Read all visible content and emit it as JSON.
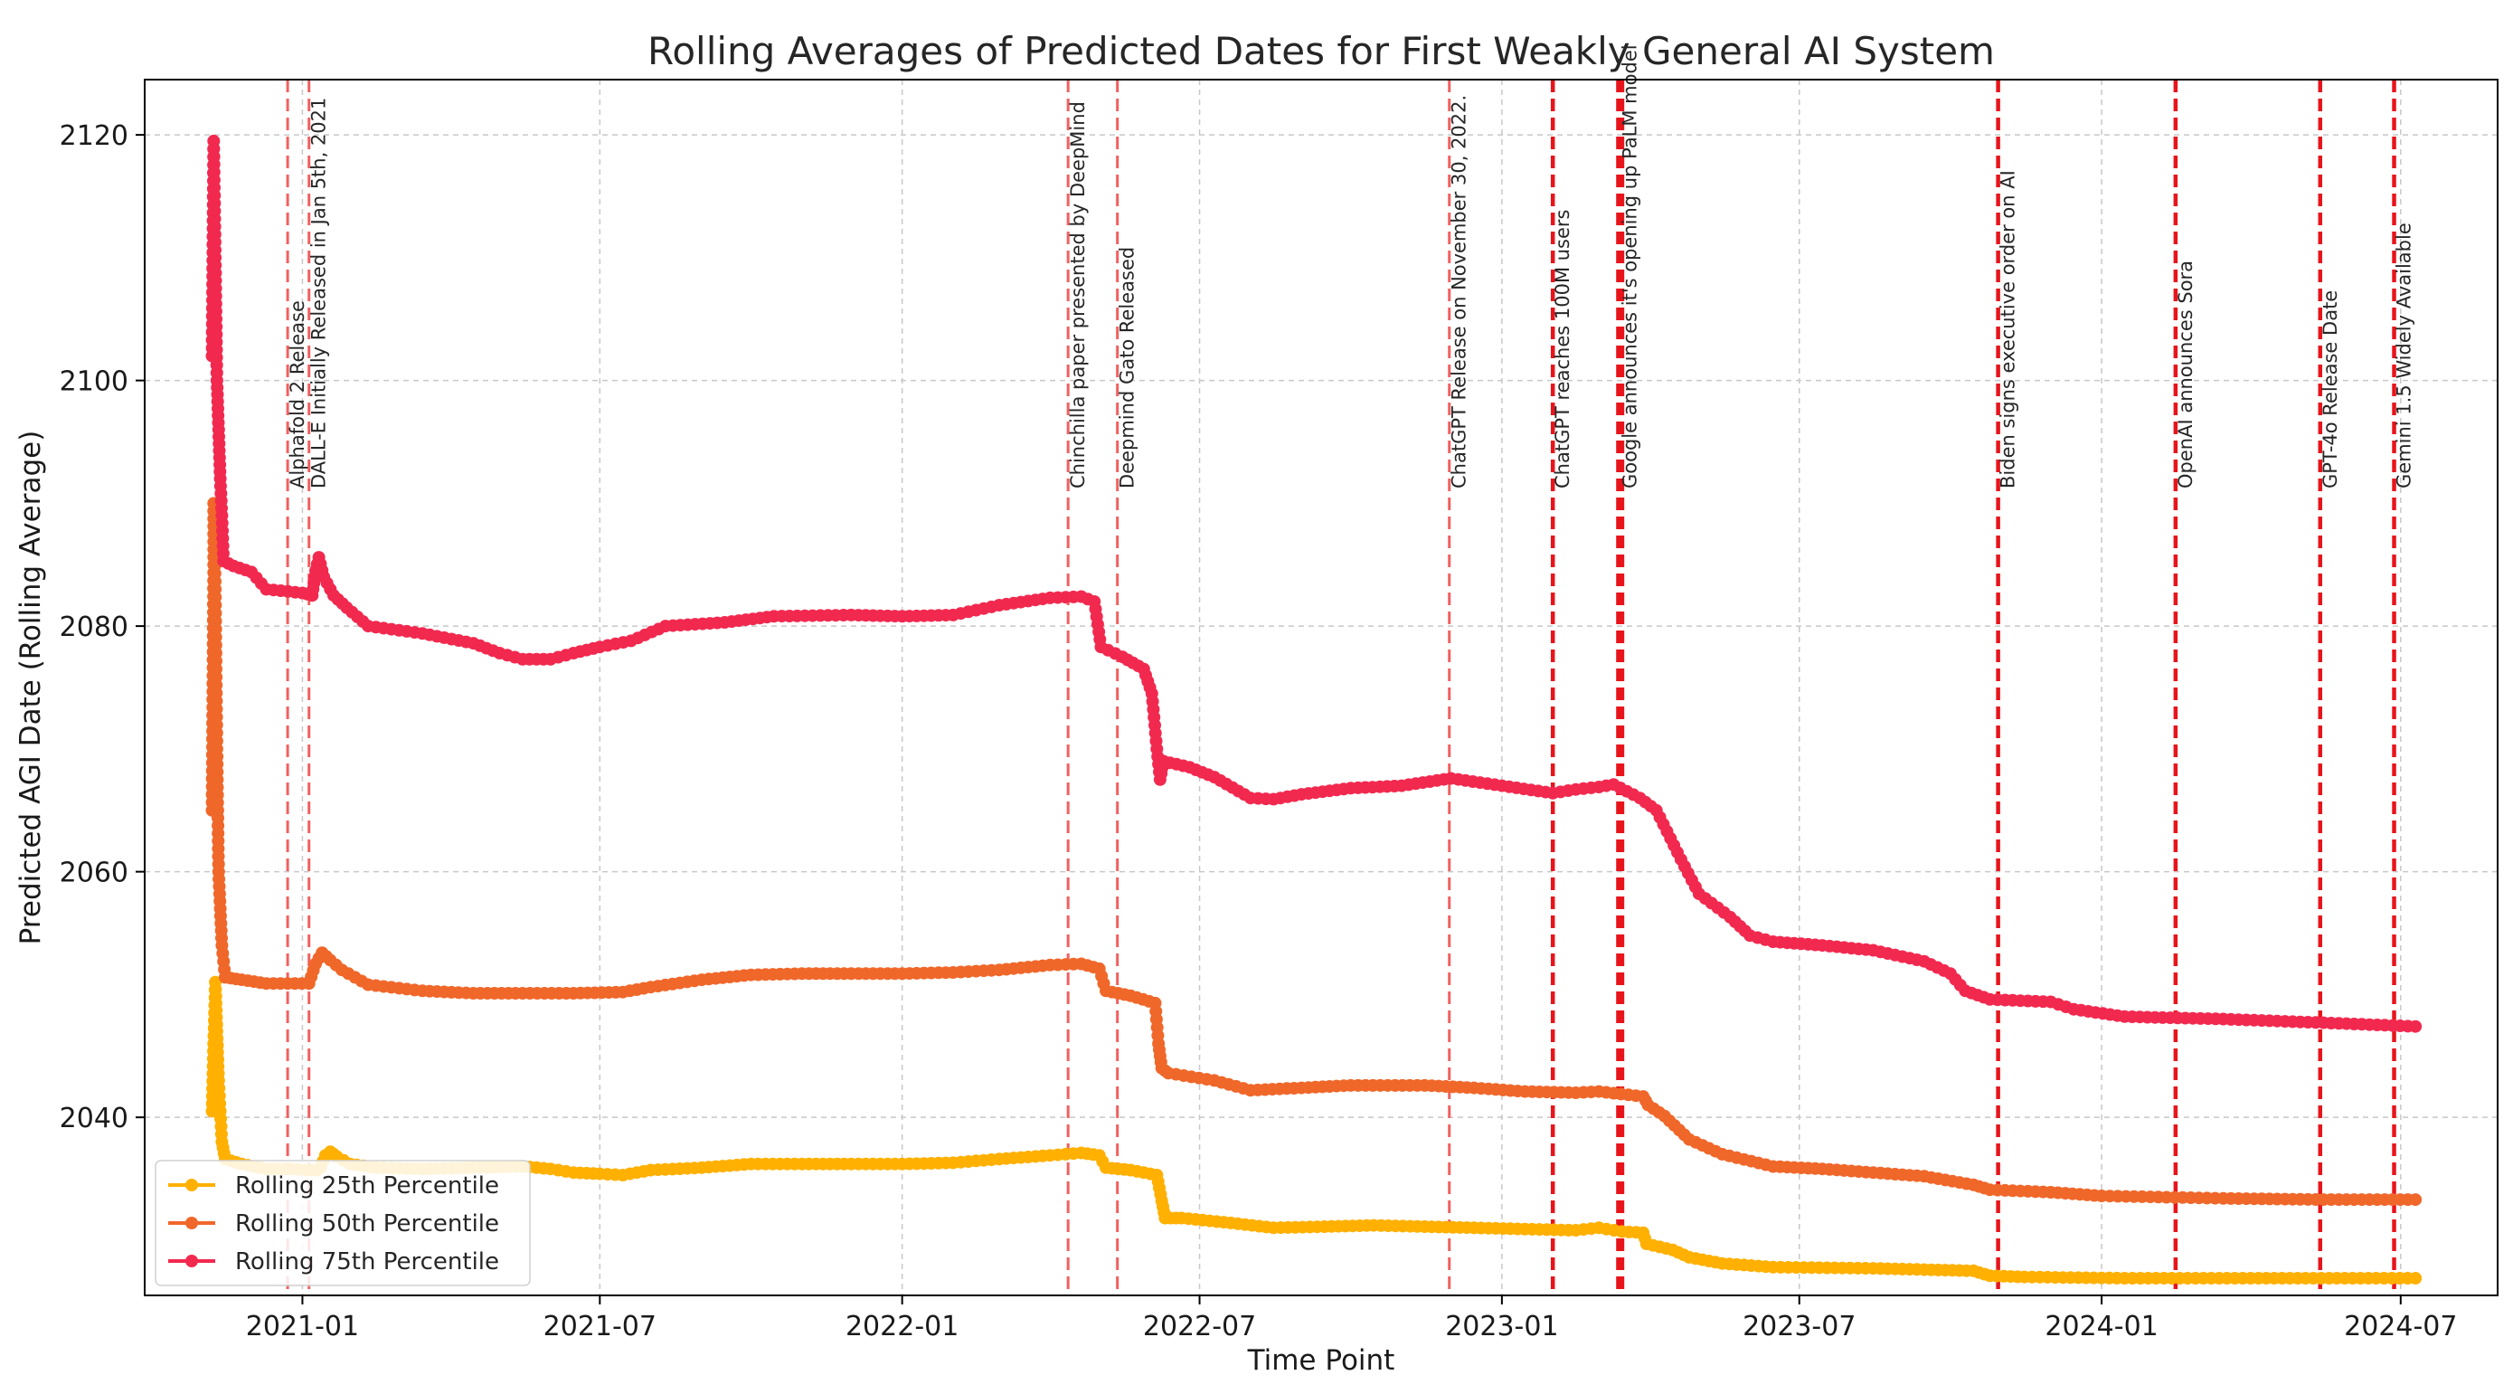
{
  "chart_data": {
    "type": "line",
    "title": "Rolling Averages of Predicted Dates for First Weakly General AI System",
    "xlabel": "Time Point",
    "ylabel": "Predicted AGI Date (Rolling Average)",
    "x_range": [
      "2020-09-27",
      "2024-08-29"
    ],
    "ylim": [
      2025.5,
      2124.5
    ],
    "grid": true,
    "legend_position": "lower-left",
    "x_ticks": [
      {
        "date": "2021-01-01",
        "label": "2021-01"
      },
      {
        "date": "2021-07-01",
        "label": "2021-07"
      },
      {
        "date": "2022-01-01",
        "label": "2022-01"
      },
      {
        "date": "2022-07-01",
        "label": "2022-07"
      },
      {
        "date": "2023-01-01",
        "label": "2023-01"
      },
      {
        "date": "2023-07-01",
        "label": "2023-07"
      },
      {
        "date": "2024-01-01",
        "label": "2024-01"
      },
      {
        "date": "2024-07-01",
        "label": "2024-07"
      }
    ],
    "y_ticks": [
      2040,
      2060,
      2080,
      2100,
      2120
    ],
    "series": [
      {
        "name": "Rolling 25th Percentile",
        "color": "#FFB000",
        "points": [
          [
            "2020-11-07",
            2040.5
          ],
          [
            "2020-11-08",
            2046
          ],
          [
            "2020-11-09",
            2051
          ],
          [
            "2020-11-10",
            2047
          ],
          [
            "2020-11-11",
            2043
          ],
          [
            "2020-11-13",
            2038
          ],
          [
            "2020-11-15",
            2036.6
          ],
          [
            "2020-11-25",
            2036.2
          ],
          [
            "2020-12-10",
            2035.8
          ],
          [
            "2020-12-25",
            2035.8
          ],
          [
            "2021-01-03",
            2035.7
          ],
          [
            "2021-01-10",
            2035.7
          ],
          [
            "2021-01-12",
            2035.9
          ],
          [
            "2021-01-15",
            2036.9
          ],
          [
            "2021-01-18",
            2037.2
          ],
          [
            "2021-01-22",
            2036.8
          ],
          [
            "2021-01-30",
            2036.2
          ],
          [
            "2021-02-15",
            2035.9
          ],
          [
            "2021-03-15",
            2035.8
          ],
          [
            "2021-04-15",
            2035.9
          ],
          [
            "2021-05-15",
            2036.0
          ],
          [
            "2021-06-01",
            2035.8
          ],
          [
            "2021-06-15",
            2035.5
          ],
          [
            "2021-07-01",
            2035.4
          ],
          [
            "2021-07-15",
            2035.3
          ],
          [
            "2021-08-01",
            2035.7
          ],
          [
            "2021-09-01",
            2035.9
          ],
          [
            "2021-10-01",
            2036.2
          ],
          [
            "2021-11-01",
            2036.2
          ],
          [
            "2021-12-01",
            2036.2
          ],
          [
            "2022-01-01",
            2036.2
          ],
          [
            "2022-02-01",
            2036.3
          ],
          [
            "2022-03-01",
            2036.6
          ],
          [
            "2022-04-01",
            2036.9
          ],
          [
            "2022-04-20",
            2037.1
          ],
          [
            "2022-05-01",
            2036.9
          ],
          [
            "2022-05-05",
            2035.9
          ],
          [
            "2022-05-20",
            2035.7
          ],
          [
            "2022-06-05",
            2035.3
          ],
          [
            "2022-06-08",
            2033.2
          ],
          [
            "2022-06-10",
            2031.8
          ],
          [
            "2022-06-20",
            2031.8
          ],
          [
            "2022-07-20",
            2031.4
          ],
          [
            "2022-08-15",
            2031.0
          ],
          [
            "2022-09-15",
            2031.1
          ],
          [
            "2022-10-15",
            2031.2
          ],
          [
            "2022-11-15",
            2031.1
          ],
          [
            "2022-12-15",
            2031.0
          ],
          [
            "2023-01-15",
            2030.9
          ],
          [
            "2023-02-15",
            2030.8
          ],
          [
            "2023-03-01",
            2031.0
          ],
          [
            "2023-03-15",
            2030.7
          ],
          [
            "2023-03-28",
            2030.6
          ],
          [
            "2023-03-30",
            2029.7
          ],
          [
            "2023-04-15",
            2029.2
          ],
          [
            "2023-04-25",
            2028.6
          ],
          [
            "2023-05-15",
            2028.1
          ],
          [
            "2023-06-15",
            2027.8
          ],
          [
            "2023-08-15",
            2027.7
          ],
          [
            "2023-09-15",
            2027.6
          ],
          [
            "2023-10-15",
            2027.5
          ],
          [
            "2023-10-25",
            2027.1
          ],
          [
            "2023-11-15",
            2027.0
          ],
          [
            "2024-01-15",
            2026.9
          ],
          [
            "2024-04-15",
            2026.9
          ],
          [
            "2024-07-10",
            2026.9
          ]
        ]
      },
      {
        "name": "Rolling 50th Percentile",
        "color": "#F0672A",
        "points": [
          [
            "2020-11-07",
            2065
          ],
          [
            "2020-11-08",
            2085
          ],
          [
            "2020-11-08",
            2090
          ],
          [
            "2020-11-09",
            2083
          ],
          [
            "2020-11-10",
            2070
          ],
          [
            "2020-11-11",
            2060
          ],
          [
            "2020-11-12",
            2057
          ],
          [
            "2020-11-13",
            2054
          ],
          [
            "2020-11-15",
            2051.4
          ],
          [
            "2020-11-25",
            2051.2
          ],
          [
            "2020-12-10",
            2050.9
          ],
          [
            "2021-01-05",
            2050.9
          ],
          [
            "2021-01-09",
            2052.5
          ],
          [
            "2021-01-13",
            2053.4
          ],
          [
            "2021-01-18",
            2052.8
          ],
          [
            "2021-01-25",
            2052.0
          ],
          [
            "2021-02-10",
            2050.8
          ],
          [
            "2021-03-15",
            2050.3
          ],
          [
            "2021-04-15",
            2050.1
          ],
          [
            "2021-05-15",
            2050.1
          ],
          [
            "2021-06-15",
            2050.1
          ],
          [
            "2021-07-15",
            2050.2
          ],
          [
            "2021-08-01",
            2050.6
          ],
          [
            "2021-09-01",
            2051.2
          ],
          [
            "2021-10-01",
            2051.6
          ],
          [
            "2021-11-01",
            2051.7
          ],
          [
            "2021-12-01",
            2051.7
          ],
          [
            "2022-01-01",
            2051.7
          ],
          [
            "2022-02-01",
            2051.8
          ],
          [
            "2022-03-01",
            2052.0
          ],
          [
            "2022-04-01",
            2052.4
          ],
          [
            "2022-04-20",
            2052.5
          ],
          [
            "2022-05-01",
            2052.1
          ],
          [
            "2022-05-05",
            2050.3
          ],
          [
            "2022-05-20",
            2049.9
          ],
          [
            "2022-06-04",
            2049.3
          ],
          [
            "2022-06-06",
            2046
          ],
          [
            "2022-06-08",
            2044
          ],
          [
            "2022-06-12",
            2043.6
          ],
          [
            "2022-07-10",
            2043.0
          ],
          [
            "2022-08-01",
            2042.2
          ],
          [
            "2022-09-01",
            2042.4
          ],
          [
            "2022-10-01",
            2042.6
          ],
          [
            "2022-11-15",
            2042.6
          ],
          [
            "2022-12-15",
            2042.4
          ],
          [
            "2023-01-15",
            2042.1
          ],
          [
            "2023-02-15",
            2042.0
          ],
          [
            "2023-03-01",
            2042.1
          ],
          [
            "2023-03-28",
            2041.7
          ],
          [
            "2023-03-31",
            2041.0
          ],
          [
            "2023-04-10",
            2040.1
          ],
          [
            "2023-04-25",
            2038.2
          ],
          [
            "2023-05-15",
            2037.0
          ],
          [
            "2023-06-15",
            2036.0
          ],
          [
            "2023-07-15",
            2035.8
          ],
          [
            "2023-08-15",
            2035.5
          ],
          [
            "2023-09-15",
            2035.2
          ],
          [
            "2023-10-15",
            2034.5
          ],
          [
            "2023-10-25",
            2034.1
          ],
          [
            "2023-12-01",
            2033.9
          ],
          [
            "2024-01-01",
            2033.6
          ],
          [
            "2024-03-15",
            2033.4
          ],
          [
            "2024-05-15",
            2033.3
          ],
          [
            "2024-07-10",
            2033.3
          ]
        ]
      },
      {
        "name": "Rolling 75th Percentile",
        "color": "#F2294F",
        "points": [
          [
            "2020-11-07",
            2102
          ],
          [
            "2020-11-08",
            2119.5
          ],
          [
            "2020-11-09",
            2110
          ],
          [
            "2020-11-10",
            2100
          ],
          [
            "2020-11-11",
            2096
          ],
          [
            "2020-11-12",
            2092
          ],
          [
            "2020-11-13",
            2089
          ],
          [
            "2020-11-14",
            2085.3
          ],
          [
            "2020-11-20",
            2084.9
          ],
          [
            "2020-12-01",
            2084.4
          ],
          [
            "2020-12-10",
            2083.0
          ],
          [
            "2021-01-01",
            2082.7
          ],
          [
            "2021-01-07",
            2082.5
          ],
          [
            "2021-01-09",
            2084.5
          ],
          [
            "2021-01-11",
            2085.6
          ],
          [
            "2021-01-14",
            2084.0
          ],
          [
            "2021-01-20",
            2082.5
          ],
          [
            "2021-01-28",
            2081.5
          ],
          [
            "2021-02-10",
            2080.0
          ],
          [
            "2021-03-15",
            2079.4
          ],
          [
            "2021-04-15",
            2078.6
          ],
          [
            "2021-05-01",
            2077.8
          ],
          [
            "2021-05-15",
            2077.3
          ],
          [
            "2021-06-01",
            2077.3
          ],
          [
            "2021-06-15",
            2077.8
          ],
          [
            "2021-07-01",
            2078.3
          ],
          [
            "2021-07-20",
            2078.8
          ],
          [
            "2021-08-10",
            2080.0
          ],
          [
            "2021-09-15",
            2080.3
          ],
          [
            "2021-10-15",
            2080.8
          ],
          [
            "2021-12-01",
            2080.9
          ],
          [
            "2022-01-01",
            2080.8
          ],
          [
            "2022-02-01",
            2080.9
          ],
          [
            "2022-03-01",
            2081.7
          ],
          [
            "2022-04-01",
            2082.3
          ],
          [
            "2022-04-20",
            2082.4
          ],
          [
            "2022-04-28",
            2082.0
          ],
          [
            "2022-05-02",
            2078.3
          ],
          [
            "2022-05-15",
            2077.5
          ],
          [
            "2022-05-28",
            2076.5
          ],
          [
            "2022-06-02",
            2074.5
          ],
          [
            "2022-06-05",
            2070
          ],
          [
            "2022-06-07",
            2067.5
          ],
          [
            "2022-06-09",
            2069.0
          ],
          [
            "2022-06-25",
            2068.5
          ],
          [
            "2022-07-10",
            2067.7
          ],
          [
            "2022-08-01",
            2066.0
          ],
          [
            "2022-08-15",
            2065.9
          ],
          [
            "2022-09-01",
            2066.3
          ],
          [
            "2022-10-01",
            2066.8
          ],
          [
            "2022-11-01",
            2067.0
          ],
          [
            "2022-12-01",
            2067.6
          ],
          [
            "2023-01-01",
            2067.0
          ],
          [
            "2023-02-01",
            2066.4
          ],
          [
            "2023-02-15",
            2066.7
          ],
          [
            "2023-03-01",
            2066.9
          ],
          [
            "2023-03-10",
            2067.1
          ],
          [
            "2023-03-26",
            2066.0
          ],
          [
            "2023-04-05",
            2065.0
          ],
          [
            "2023-04-20",
            2061.0
          ],
          [
            "2023-05-01",
            2058.2
          ],
          [
            "2023-05-20",
            2056.3
          ],
          [
            "2023-06-01",
            2054.8
          ],
          [
            "2023-06-15",
            2054.3
          ],
          [
            "2023-07-15",
            2054.0
          ],
          [
            "2023-08-15",
            2053.6
          ],
          [
            "2023-09-15",
            2052.7
          ],
          [
            "2023-10-01",
            2051.7
          ],
          [
            "2023-10-10",
            2050.3
          ],
          [
            "2023-10-25",
            2049.6
          ],
          [
            "2023-12-01",
            2049.4
          ],
          [
            "2023-12-15",
            2048.8
          ],
          [
            "2024-01-15",
            2048.2
          ],
          [
            "2024-03-15",
            2048.0
          ],
          [
            "2024-05-15",
            2047.7
          ],
          [
            "2024-07-10",
            2047.4
          ]
        ]
      }
    ],
    "events": [
      {
        "date": "2020-12-23",
        "label": "Alphafold 2 Release",
        "strength": 1
      },
      {
        "date": "2021-01-05",
        "label": "DALL-E Initially Released in Jan 5th, 2021",
        "strength": 1
      },
      {
        "date": "2022-04-12",
        "label": "Chinchilla paper presented by DeepMind",
        "strength": 1
      },
      {
        "date": "2022-05-12",
        "label": "Deepmind Gato Released",
        "strength": 1
      },
      {
        "date": "2022-11-30",
        "label": "ChatGPT Release on November 30, 2022.",
        "strength": 1
      },
      {
        "date": "2023-02-01",
        "label": "ChatGPT reaches 100M users",
        "strength": 2
      },
      {
        "date": "2023-03-14",
        "label": "Google announces it's opening up PaLM model",
        "strength": 3
      },
      {
        "date": "2023-10-30",
        "label": "Biden signs executive order on AI",
        "strength": 2
      },
      {
        "date": "2024-02-15",
        "label": "OpenAI announces Sora",
        "strength": 2
      },
      {
        "date": "2024-05-13",
        "label": "GPT-4o Release Date",
        "strength": 2
      },
      {
        "date": "2024-06-27",
        "label": "Gemini 1.5 Widely Available",
        "strength": 2
      }
    ]
  }
}
